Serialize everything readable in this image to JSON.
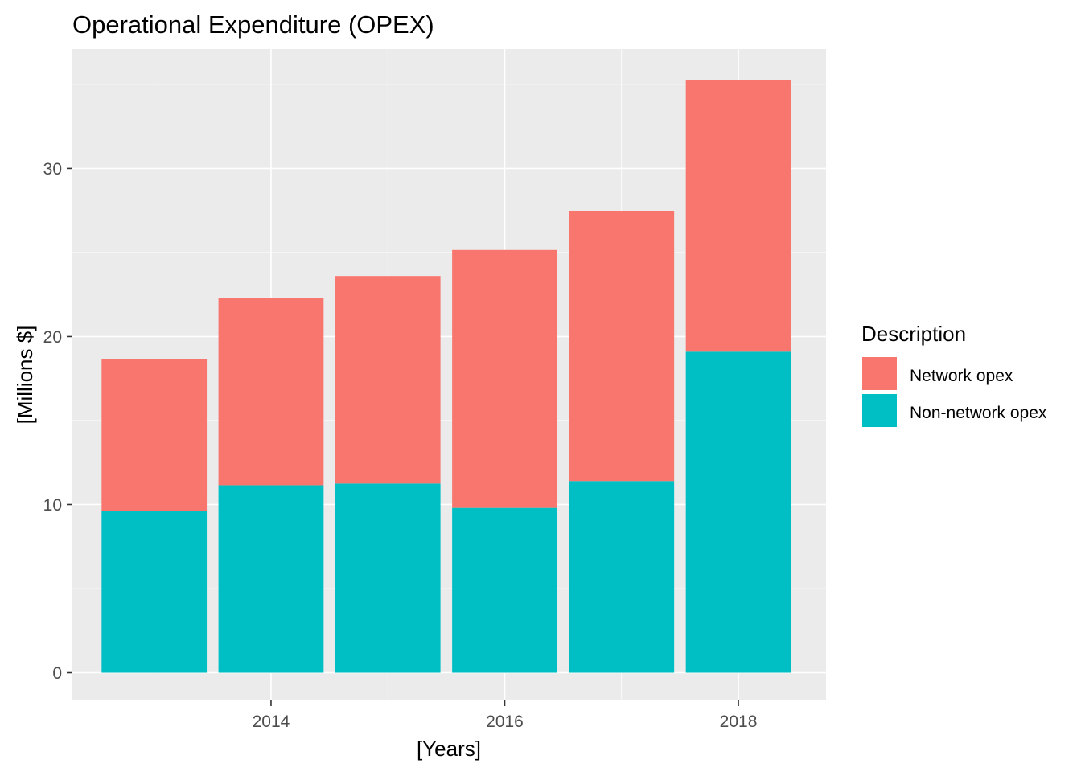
{
  "chart_data": {
    "type": "bar",
    "stacked": true,
    "title": "Operational Expenditure (OPEX)",
    "xlabel": "[Years]",
    "ylabel": "[Millions $]",
    "x": [
      2013,
      2014,
      2015,
      2016,
      2017,
      2018
    ],
    "xlim": [
      2012.3,
      2018.75
    ],
    "xticks": [
      2014,
      2016,
      2018
    ],
    "ylim": [
      -1.65,
      37.1
    ],
    "yticks": [
      0,
      10,
      20,
      30
    ],
    "grid": true,
    "legend": {
      "title": "Description",
      "placement": "right",
      "entries": [
        "Network opex",
        "Non-network opex"
      ]
    },
    "series": [
      {
        "name": "Non-network opex",
        "color": "#00BFC4",
        "values": [
          9.6,
          11.15,
          11.25,
          9.8,
          11.4,
          19.1
        ]
      },
      {
        "name": "Network opex",
        "color": "#F8766D",
        "values": [
          9.05,
          11.15,
          12.35,
          15.35,
          16.05,
          16.15
        ]
      }
    ],
    "panel_color": "#EBEBEB",
    "grid_color": "#FFFFFF"
  }
}
